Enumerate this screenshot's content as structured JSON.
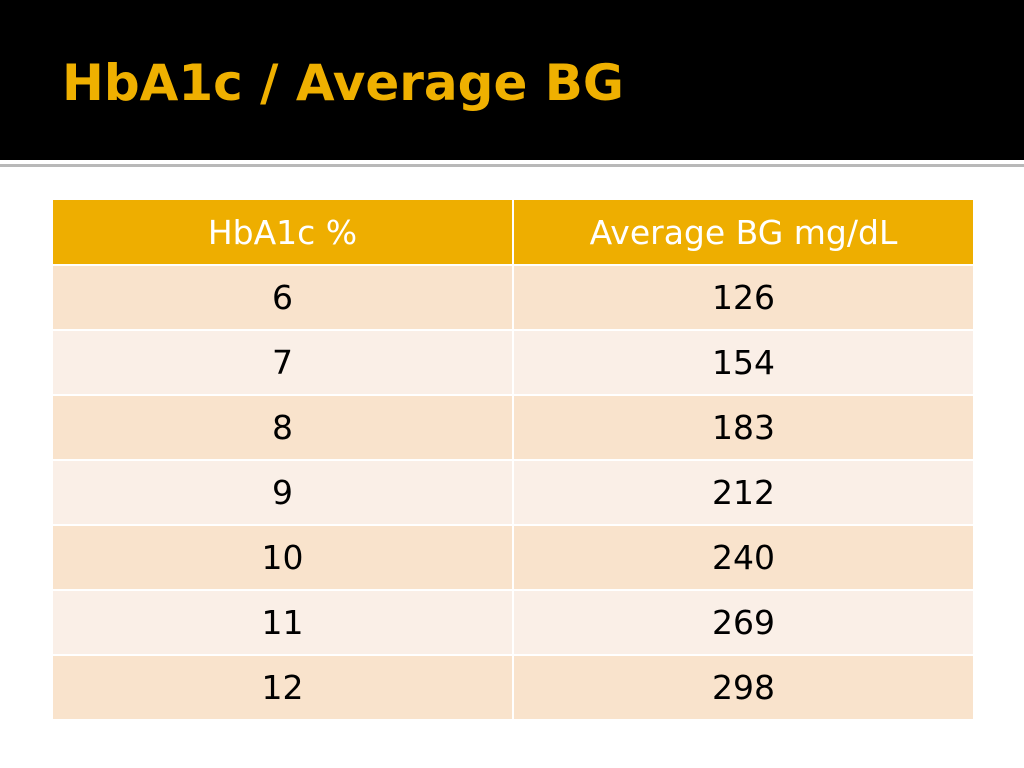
{
  "slide": {
    "title": "HbA1c / Average BG"
  },
  "table": {
    "headers": [
      "HbA1c %",
      "Average BG mg/dL"
    ],
    "rows": [
      [
        "6",
        "126"
      ],
      [
        "7",
        "154"
      ],
      [
        "8",
        "183"
      ],
      [
        "9",
        "212"
      ],
      [
        "10",
        "240"
      ],
      [
        "11",
        "269"
      ],
      [
        "12",
        "298"
      ]
    ]
  },
  "colors": {
    "title_bar": "#000000",
    "title_text": "#efb000",
    "header_fill": "#eeae00",
    "row_band_a": "#f9e3cc",
    "row_band_b": "#faefe7"
  }
}
